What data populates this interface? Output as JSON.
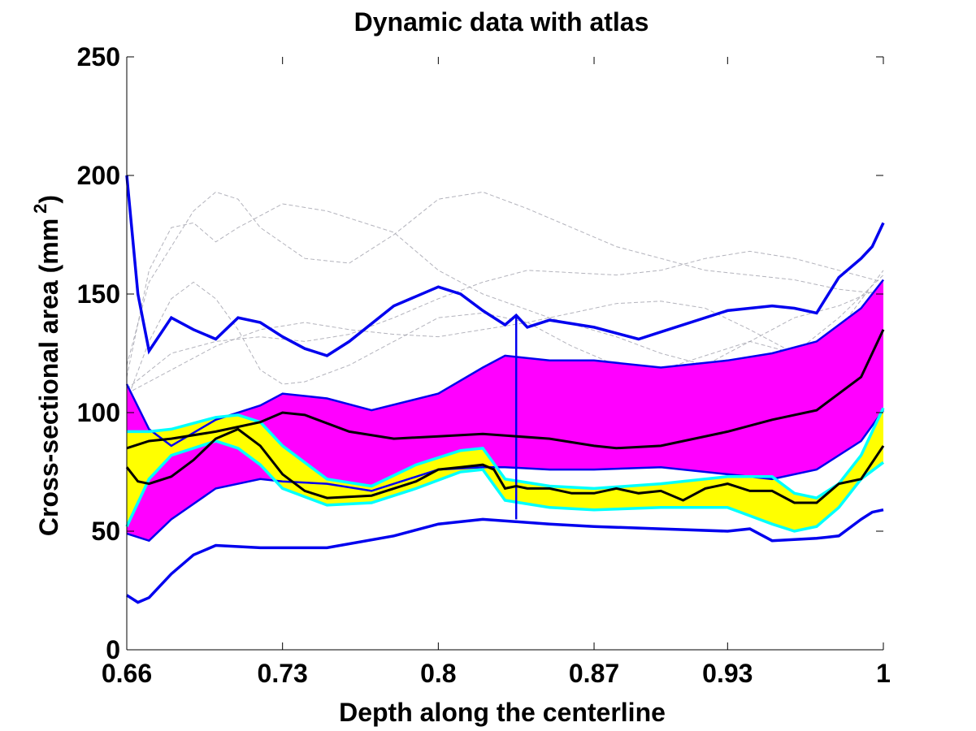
{
  "chart_data": {
    "type": "line",
    "title": "Dynamic data with atlas",
    "xlabel": "Depth along the centerline",
    "ylabel": "Cross-sectional area (mm",
    "ylabel_sup": "2",
    "ylabel_close": ")",
    "xlim": [
      0.66,
      1.0
    ],
    "ylim": [
      0,
      250
    ],
    "xticks": [
      0.66,
      0.73,
      0.8,
      0.87,
      0.93,
      1.0
    ],
    "xtick_labels": [
      "0.66",
      "0.73",
      "0.8",
      "0.87",
      "0.93",
      "1"
    ],
    "yticks": [
      0,
      50,
      100,
      150,
      200,
      250
    ],
    "ytick_labels": [
      "0",
      "50",
      "100",
      "150",
      "200",
      "250"
    ],
    "colors": {
      "atlas_band": "#ff00ff",
      "dynamic_band": "#ffff00",
      "dynamic_bounds": "#00ffff",
      "envelope": "#0000ee",
      "mean": "#000000",
      "individual": "#9a9aa6"
    },
    "marker_x": 0.835,
    "marker_y": [
      55,
      141
    ],
    "atlas_band": {
      "x": [
        0.66,
        0.67,
        0.68,
        0.7,
        0.72,
        0.73,
        0.75,
        0.77,
        0.8,
        0.82,
        0.83,
        0.85,
        0.87,
        0.9,
        0.93,
        0.95,
        0.97,
        0.99,
        1.0
      ],
      "upper": [
        112,
        93,
        86,
        97,
        103,
        108,
        106,
        101,
        108,
        119,
        124,
        122,
        122,
        119,
        122,
        125,
        130,
        144,
        156
      ],
      "lower": [
        49,
        46,
        55,
        68,
        72,
        71,
        70,
        67,
        76,
        77,
        77,
        76,
        76,
        77,
        74,
        72,
        76,
        88,
        101
      ]
    },
    "dynamic_band": {
      "x": [
        0.66,
        0.67,
        0.68,
        0.7,
        0.71,
        0.72,
        0.73,
        0.75,
        0.77,
        0.79,
        0.81,
        0.82,
        0.83,
        0.85,
        0.87,
        0.9,
        0.93,
        0.95,
        0.96,
        0.97,
        0.98,
        0.99,
        1.0
      ],
      "upper": [
        92,
        92,
        93,
        98,
        99,
        96,
        86,
        72,
        69,
        78,
        84,
        85,
        72,
        69,
        68,
        70,
        73,
        73,
        66,
        64,
        70,
        82,
        102
      ],
      "lower": [
        52,
        72,
        82,
        88,
        85,
        78,
        68,
        61,
        62,
        68,
        75,
        76,
        63,
        60,
        59,
        60,
        60,
        53,
        50,
        52,
        60,
        72,
        79
      ]
    },
    "series": [
      {
        "x": [
          0.66,
          0.665,
          0.67,
          0.68,
          0.69,
          0.7,
          0.71,
          0.72,
          0.73,
          0.74,
          0.75,
          0.76,
          0.78,
          0.8,
          0.81,
          0.82,
          0.83,
          0.835,
          0.84,
          0.85,
          0.87,
          0.89,
          0.9,
          0.93,
          0.95,
          0.96,
          0.97,
          0.98,
          0.99,
          0.995,
          1.0
        ],
        "values": [
          200,
          150,
          126,
          140,
          135,
          131,
          140,
          138,
          132,
          127,
          124,
          130,
          145,
          153,
          150,
          143,
          137,
          141,
          136,
          139,
          136,
          131,
          134,
          143,
          145,
          144,
          142,
          157,
          165,
          170,
          180
        ]
      },
      {
        "x": [
          0.66,
          0.665,
          0.67,
          0.68,
          0.69,
          0.7,
          0.72,
          0.75,
          0.78,
          0.8,
          0.82,
          0.85,
          0.87,
          0.9,
          0.93,
          0.94,
          0.95,
          0.97,
          0.98,
          0.99,
          0.995,
          1.0
        ],
        "values": [
          23,
          20,
          22,
          32,
          40,
          44,
          43,
          43,
          48,
          53,
          55,
          53,
          52,
          51,
          50,
          51,
          46,
          47,
          48,
          55,
          58,
          59
        ]
      },
      {
        "x": [
          0.66,
          0.67,
          0.68,
          0.7,
          0.72,
          0.73,
          0.74,
          0.76,
          0.78,
          0.8,
          0.82,
          0.85,
          0.87,
          0.88,
          0.9,
          0.93,
          0.95,
          0.97,
          0.99,
          1.0
        ],
        "values": [
          85,
          88,
          89,
          92,
          96,
          100,
          99,
          92,
          89,
          90,
          91,
          89,
          86,
          85,
          86,
          92,
          97,
          101,
          115,
          135
        ]
      },
      {
        "x": [
          0.66,
          0.665,
          0.67,
          0.68,
          0.69,
          0.7,
          0.71,
          0.72,
          0.73,
          0.74,
          0.75,
          0.77,
          0.79,
          0.8,
          0.81,
          0.82,
          0.825,
          0.83,
          0.835,
          0.84,
          0.85,
          0.86,
          0.87,
          0.88,
          0.89,
          0.9,
          0.91,
          0.92,
          0.93,
          0.94,
          0.95,
          0.96,
          0.97,
          0.98,
          0.99,
          1.0
        ],
        "values": [
          77,
          71,
          70,
          73,
          80,
          89,
          93,
          86,
          74,
          67,
          64,
          65,
          71,
          76,
          77,
          78,
          76,
          68,
          69,
          68,
          68,
          66,
          66,
          68,
          66,
          67,
          63,
          68,
          70,
          67,
          67,
          62,
          62,
          70,
          72,
          86
        ]
      },
      {
        "x": [
          0.66,
          0.67,
          0.68,
          0.69,
          0.7,
          0.71,
          0.73,
          0.75,
          0.78,
          0.8,
          0.82,
          0.85,
          0.88,
          0.9,
          0.92,
          0.94,
          0.96,
          0.98,
          1.0
        ],
        "values": [
          115,
          160,
          178,
          180,
          172,
          178,
          188,
          185,
          176,
          160,
          150,
          140,
          132,
          125,
          120,
          130,
          125,
          135,
          160
        ]
      },
      {
        "x": [
          0.66,
          0.67,
          0.68,
          0.69,
          0.7,
          0.71,
          0.72,
          0.74,
          0.76,
          0.78,
          0.8,
          0.82,
          0.84,
          0.86,
          0.88,
          0.9,
          0.92,
          0.94,
          0.96,
          0.98,
          1.0
        ],
        "values": [
          120,
          155,
          170,
          185,
          193,
          190,
          178,
          165,
          163,
          175,
          190,
          193,
          186,
          178,
          170,
          165,
          160,
          158,
          156,
          152,
          150
        ]
      },
      {
        "x": [
          0.66,
          0.67,
          0.68,
          0.69,
          0.7,
          0.71,
          0.72,
          0.73,
          0.74,
          0.76,
          0.78,
          0.8,
          0.82,
          0.84,
          0.86,
          0.88,
          0.9,
          0.92,
          0.94,
          0.96,
          0.98,
          1.0
        ],
        "values": [
          105,
          130,
          148,
          155,
          148,
          135,
          118,
          112,
          113,
          120,
          130,
          140,
          142,
          138,
          128,
          120,
          118,
          124,
          130,
          140,
          145,
          153
        ]
      },
      {
        "x": [
          0.66,
          0.68,
          0.7,
          0.72,
          0.74,
          0.76,
          0.78,
          0.8,
          0.82,
          0.84,
          0.86,
          0.88,
          0.9,
          0.92,
          0.94,
          0.96,
          0.98,
          1.0
        ],
        "values": [
          110,
          125,
          130,
          132,
          130,
          133,
          140,
          148,
          155,
          160,
          159,
          158,
          160,
          165,
          168,
          165,
          160,
          155
        ]
      },
      {
        "x": [
          0.66,
          0.68,
          0.7,
          0.72,
          0.74,
          0.76,
          0.78,
          0.8,
          0.82,
          0.84,
          0.86,
          0.88,
          0.9,
          0.92,
          0.94,
          0.96,
          0.98,
          1.0
        ],
        "values": [
          108,
          118,
          128,
          135,
          138,
          135,
          133,
          132,
          135,
          138,
          142,
          146,
          147,
          144,
          135,
          125,
          140,
          158
        ]
      }
    ]
  }
}
